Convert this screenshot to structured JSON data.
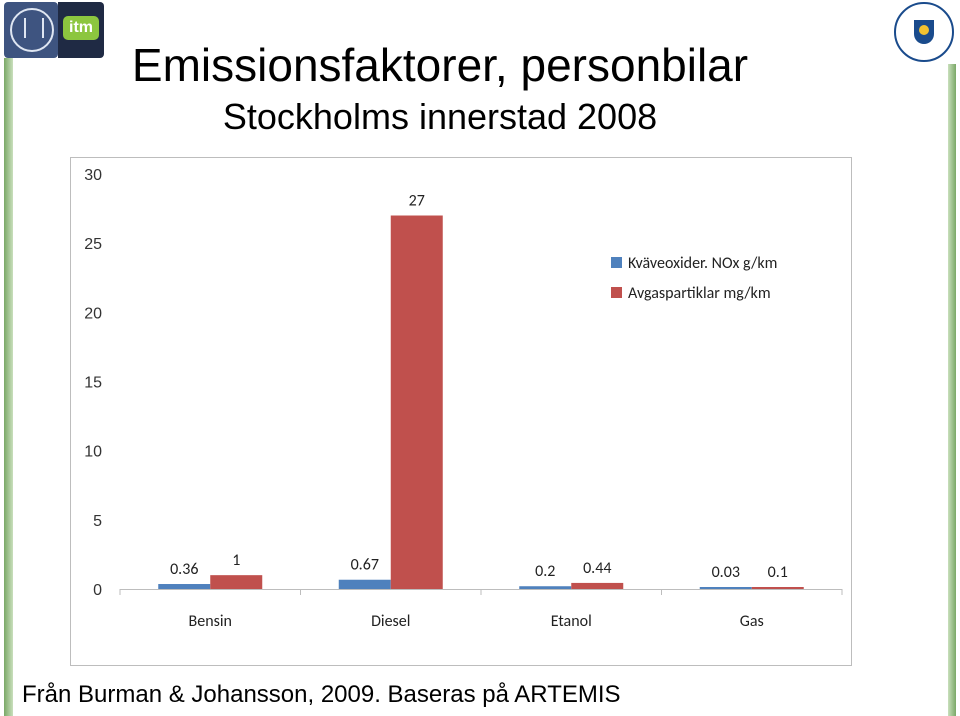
{
  "header": {
    "title": "Emissionsfaktorer, personbilar",
    "subtitle": "Stockholms innerstad 2008"
  },
  "logos": {
    "left_1": "university-seal-logo",
    "left_2_text": "itm",
    "right": "stockholms-stad-logo"
  },
  "chart_data": {
    "type": "bar",
    "categories": [
      "Bensin",
      "Diesel",
      "Etanol",
      "Gas"
    ],
    "series": [
      {
        "name": "Kväveoxider. NOx g/km",
        "color": "#4f81bd",
        "values": [
          0.36,
          0.67,
          0.2,
          0.03
        ],
        "labels": [
          "0.36",
          "0.67",
          "0.2",
          "0.03"
        ]
      },
      {
        "name": "Avgaspartiklar mg/km",
        "color": "#c0504d",
        "values": [
          1,
          27,
          0.44,
          0.1
        ],
        "labels": [
          "1",
          "27",
          "0.44",
          "0.1"
        ]
      }
    ],
    "ylim": [
      0,
      30
    ],
    "yticks": [
      0,
      5,
      10,
      15,
      20,
      25,
      30
    ],
    "ytick_labels": [
      "0",
      "5",
      "10",
      "15",
      "20",
      "25",
      "30"
    ],
    "grid": false,
    "legend_position": "top-right"
  },
  "footer": {
    "source": "Från Burman & Johansson, 2009. Baseras på ARTEMIS"
  }
}
